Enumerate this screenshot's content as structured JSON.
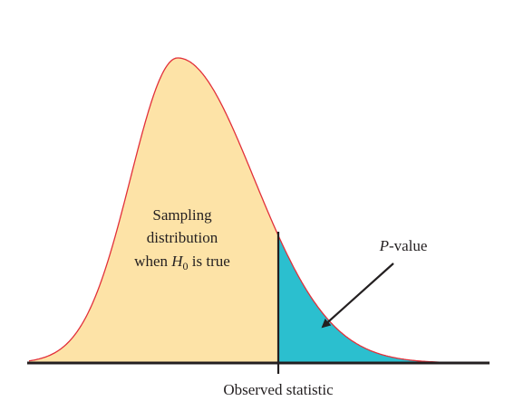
{
  "region_label": {
    "line1": "Sampling",
    "line2": "distribution",
    "line3_prefix": "when ",
    "line3_var": "H",
    "line3_sub": "0",
    "line3_suffix": " is true"
  },
  "pvalue_label": {
    "var": "P",
    "suffix": "-value"
  },
  "observed_label": "Observed statistic",
  "colors": {
    "sampling_fill": "#fde3a7",
    "pvalue_fill": "#2bbfcf",
    "curve_stroke": "#e2303a",
    "axis": "#231f20"
  }
}
